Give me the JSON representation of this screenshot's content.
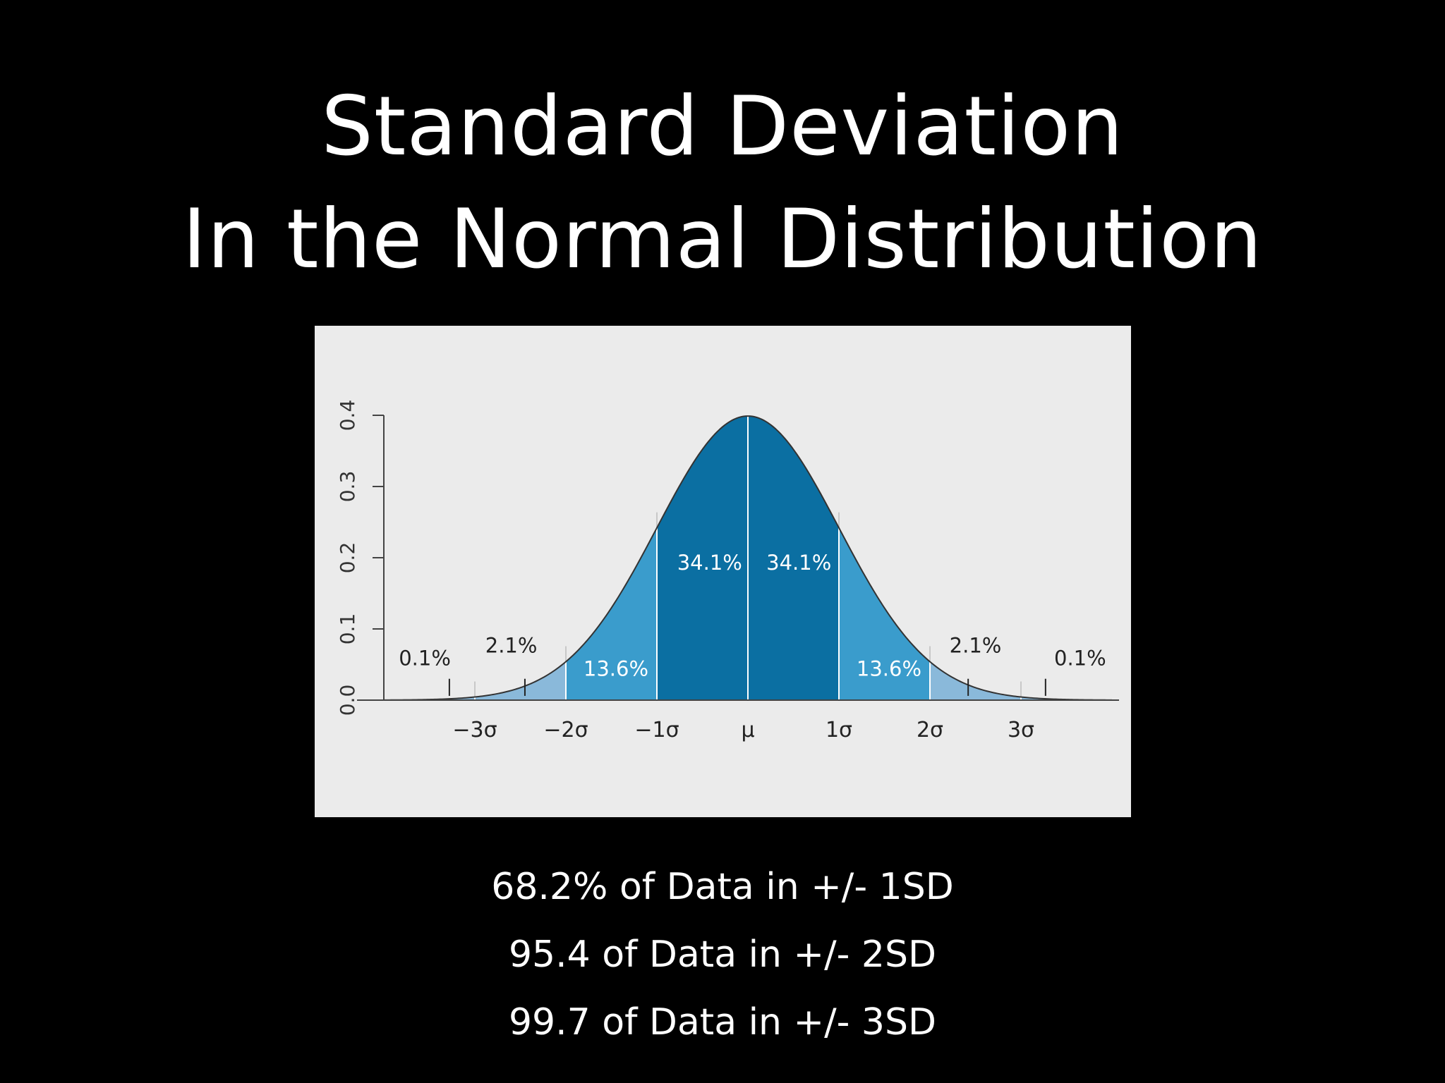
{
  "slide": {
    "title_line1": "Standard Deviation",
    "title_line2": "In the Normal Distribution",
    "notes": [
      "68.2% of Data in +/- 1SD",
      "95.4 of Data in +/- 2SD",
      "99.7 of Data in +/- 3SD"
    ]
  },
  "chart_data": {
    "type": "area",
    "title": "",
    "xlabel": "",
    "ylabel": "",
    "xlim": [
      -4,
      4
    ],
    "ylim": [
      0,
      0.4
    ],
    "x_ticks": [
      -3,
      -2,
      -1,
      0,
      1,
      2,
      3
    ],
    "x_tick_labels": [
      "−3σ",
      "−2σ",
      "−1σ",
      "μ",
      "1σ",
      "2σ",
      "3σ"
    ],
    "y_ticks": [
      0.0,
      0.1,
      0.2,
      0.3,
      0.4
    ],
    "y_tick_labels": [
      "0.0",
      "0.1",
      "0.2",
      "0.3",
      "0.4"
    ],
    "curve": "normal pdf, mean 0, sd 1",
    "regions": [
      {
        "from": -4,
        "to": -3,
        "percent": "0.1%",
        "color": "#8ab9da"
      },
      {
        "from": -3,
        "to": -2,
        "percent": "2.1%",
        "color": "#8ab9da"
      },
      {
        "from": -2,
        "to": -1,
        "percent": "13.6%",
        "color": "#3a9ccc"
      },
      {
        "from": -1,
        "to": 0,
        "percent": "34.1%",
        "color": "#0b6fa2"
      },
      {
        "from": 0,
        "to": 1,
        "percent": "34.1%",
        "color": "#0b6fa2"
      },
      {
        "from": 1,
        "to": 2,
        "percent": "13.6%",
        "color": "#3a9ccc"
      },
      {
        "from": 2,
        "to": 3,
        "percent": "2.1%",
        "color": "#8ab9da"
      },
      {
        "from": 3,
        "to": 4,
        "percent": "0.1%",
        "color": "#8ab9da"
      }
    ],
    "grid": false,
    "background": "#ebebeb"
  }
}
